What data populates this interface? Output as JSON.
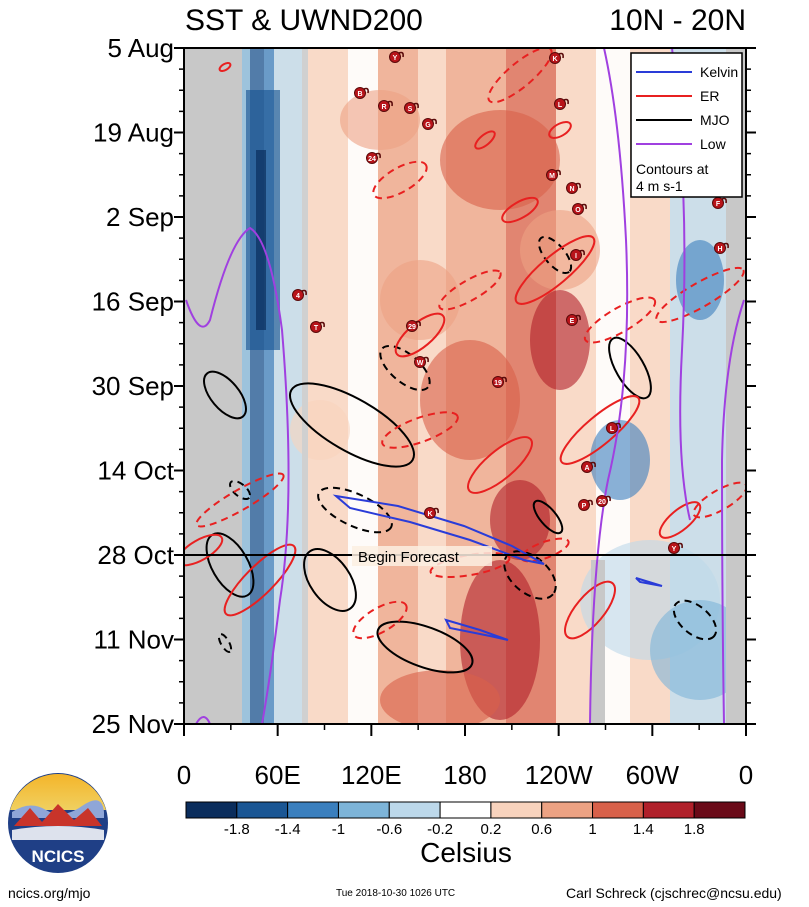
{
  "chart_data": {
    "type": "heatmap",
    "title_left": "SST & UWND200",
    "title_right": "10N - 20N",
    "y_tick_labels": [
      "5 Aug",
      "19 Aug",
      "2 Sep",
      "16 Sep",
      "30 Sep",
      "14 Oct",
      "28 Oct",
      "11 Nov",
      "25 Nov"
    ],
    "x_tick_labels": [
      "0",
      "60E",
      "120E",
      "180",
      "120W",
      "60W",
      "0"
    ],
    "x_range_deg_east": [
      0,
      360
    ],
    "forecast_label": "Begin Forecast",
    "forecast_date": "28 Oct",
    "legend": {
      "entries": [
        {
          "name": "Kelvin",
          "color": "#2a3cd8"
        },
        {
          "name": "ER",
          "color": "#e82020"
        },
        {
          "name": "MJO",
          "color": "#000000"
        },
        {
          "name": "Low",
          "color": "#a040e0"
        }
      ],
      "note": "Contours at\n4 m s-1"
    },
    "colorbar": {
      "label": "Celsius",
      "tick_labels": [
        "-1.8",
        "-1.4",
        "-1",
        "-0.6",
        "-0.2",
        "0.2",
        "0.6",
        "1",
        "1.4",
        "1.8"
      ],
      "colors": [
        "#0a2d5c",
        "#1a5694",
        "#3a7fbe",
        "#7db4d8",
        "#bcd8ea",
        "#ffffff",
        "#f8d3bd",
        "#eca283",
        "#d8614a",
        "#b0202a",
        "#6a0a18"
      ]
    },
    "storm_labels": [
      "Y",
      "K",
      "B",
      "R",
      "S",
      "G",
      "24",
      "L",
      "M",
      "N",
      "O",
      "F",
      "H",
      "I",
      "4",
      "T",
      "29",
      "W",
      "19",
      "E",
      "L",
      "K",
      "A",
      "20",
      "P",
      "Y"
    ]
  },
  "footer": {
    "logo_text": "NCICS",
    "url": "ncics.org/mjo",
    "timestamp": "Tue 2018-10-30 1026 UTC",
    "author": "Carl Schreck (cjschrec@ncsu.edu)"
  },
  "colors": {
    "land_gray": "#c8c8c8",
    "forecast_line": "#000000"
  }
}
